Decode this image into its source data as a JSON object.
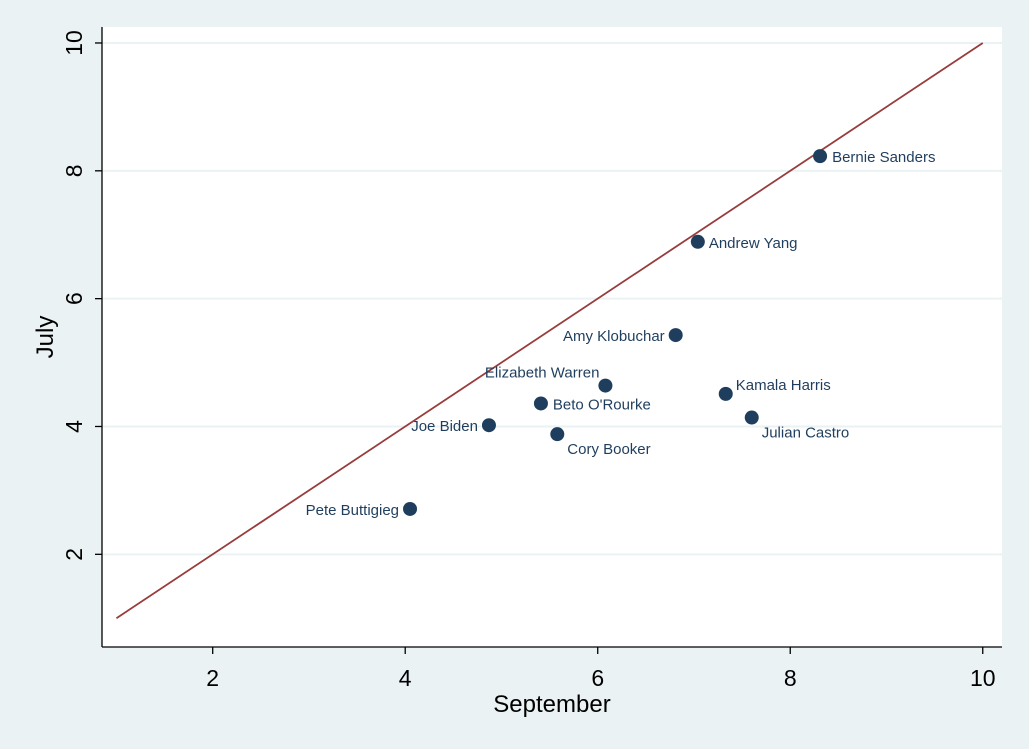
{
  "chart_data": {
    "type": "scatter",
    "xlabel": "September",
    "ylabel": "July",
    "xlim": [
      0.85,
      10.2
    ],
    "ylim": [
      0.55,
      10.25
    ],
    "x_ticks": [
      2,
      4,
      6,
      8,
      10
    ],
    "y_ticks": [
      2,
      4,
      6,
      8,
      10
    ],
    "grid": true,
    "legend": "none",
    "reference_line": {
      "from": [
        1,
        1
      ],
      "to": [
        10,
        10
      ],
      "color": "#983c3c"
    },
    "points": [
      {
        "label": "Bernie Sanders",
        "x": 8.31,
        "y": 8.23
      },
      {
        "label": "Andrew Yang",
        "x": 7.04,
        "y": 6.89
      },
      {
        "label": "Amy Klobuchar",
        "x": 6.81,
        "y": 5.43
      },
      {
        "label": "Elizabeth Warren",
        "x": 6.08,
        "y": 4.64
      },
      {
        "label": "Kamala Harris",
        "x": 7.33,
        "y": 4.51
      },
      {
        "label": "Beto O'Rourke",
        "x": 5.41,
        "y": 4.36
      },
      {
        "label": "Julian Castro",
        "x": 7.6,
        "y": 4.14
      },
      {
        "label": "Joe Biden",
        "x": 4.87,
        "y": 4.02
      },
      {
        "label": "Cory Booker",
        "x": 5.58,
        "y": 3.88
      },
      {
        "label": "Pete Buttigieg",
        "x": 4.05,
        "y": 2.71
      }
    ]
  },
  "colors": {
    "background": "#eaf2f3",
    "plot_area": "#ffffff",
    "grid": "#eaf2f3",
    "marker": "#1f3e5e",
    "label": "#1f3e5e",
    "reference_line": "#983c3c"
  }
}
